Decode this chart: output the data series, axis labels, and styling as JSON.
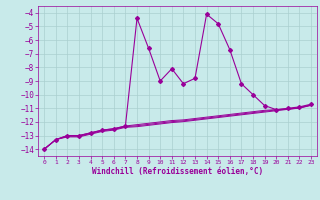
{
  "xlabel": "Windchill (Refroidissement éolien,°C)",
  "bg_color": "#c8eaea",
  "grid_color": "#aacfcf",
  "line_color": "#990099",
  "xlim": [
    -0.5,
    23.5
  ],
  "ylim": [
    -14.5,
    -3.5
  ],
  "xticks": [
    0,
    1,
    2,
    3,
    4,
    5,
    6,
    7,
    8,
    9,
    10,
    11,
    12,
    13,
    14,
    15,
    16,
    17,
    18,
    19,
    20,
    21,
    22,
    23
  ],
  "yticks": [
    -14,
    -13,
    -12,
    -11,
    -10,
    -9,
    -8,
    -7,
    -6,
    -5,
    -4
  ],
  "hours": [
    0,
    1,
    2,
    3,
    4,
    5,
    6,
    7,
    8,
    9,
    10,
    11,
    12,
    13,
    14,
    15,
    16,
    17,
    18,
    19,
    20,
    21,
    22,
    23
  ],
  "curve_main": [
    -14.0,
    -13.3,
    -13.0,
    -13.0,
    -12.8,
    -12.6,
    -12.5,
    -12.3,
    -4.4,
    -6.6,
    -9.0,
    -8.1,
    -9.2,
    -8.8,
    -4.1,
    -4.8,
    -6.7,
    -9.2,
    -10.0,
    -10.8,
    -11.1,
    -11.0,
    -10.9,
    -10.7
  ],
  "curve_smooth1": [
    -14.0,
    -13.3,
    -13.0,
    -13.0,
    -12.8,
    -12.6,
    -12.5,
    -12.3,
    -12.2,
    -12.1,
    -12.0,
    -11.9,
    -11.85,
    -11.75,
    -11.65,
    -11.55,
    -11.45,
    -11.35,
    -11.25,
    -11.15,
    -11.1,
    -11.05,
    -10.95,
    -10.75
  ],
  "curve_smooth2": [
    -14.0,
    -13.3,
    -13.05,
    -13.05,
    -12.85,
    -12.65,
    -12.55,
    -12.35,
    -12.28,
    -12.18,
    -12.08,
    -11.98,
    -11.92,
    -11.82,
    -11.72,
    -11.62,
    -11.52,
    -11.42,
    -11.32,
    -11.22,
    -11.12,
    -11.07,
    -10.97,
    -10.77
  ],
  "curve_smooth3": [
    -14.0,
    -13.3,
    -13.1,
    -13.1,
    -12.9,
    -12.7,
    -12.6,
    -12.4,
    -12.35,
    -12.25,
    -12.15,
    -12.05,
    -11.98,
    -11.88,
    -11.78,
    -11.68,
    -11.58,
    -11.48,
    -11.38,
    -11.28,
    -11.18,
    -11.08,
    -10.99,
    -10.79
  ]
}
